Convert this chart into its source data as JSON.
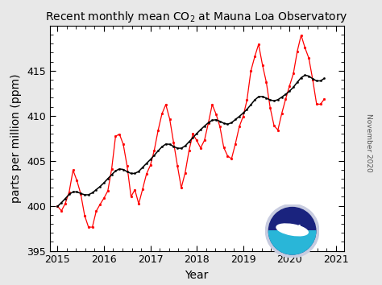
{
  "title": "Recent monthly mean CO\\u2082 at Mauna Loa Observatory",
  "xlabel": "Year",
  "ylabel": "parts per million (ppm)",
  "xlim": [
    2014.83,
    2021.17
  ],
  "ylim": [
    395,
    420
  ],
  "yticks": [
    395,
    400,
    405,
    410,
    415
  ],
  "xticks": [
    2015,
    2016,
    2017,
    2018,
    2019,
    2020,
    2021
  ],
  "bg_color": "#e8e8e8",
  "plot_bg_color": "#ffffff",
  "watermark_text": "November 2020",
  "monthly_raw": [
    399.96,
    399.43,
    400.26,
    401.52,
    403.96,
    402.8,
    401.32,
    398.93,
    397.63,
    397.63,
    399.4,
    400.16,
    400.85,
    401.65,
    404.09,
    407.71,
    407.96,
    406.82,
    404.39,
    401.01,
    401.78,
    400.21,
    401.85,
    403.53,
    404.48,
    406.13,
    408.35,
    410.21,
    411.24,
    409.65,
    407.07,
    404.47,
    401.99,
    403.65,
    406.13,
    407.97,
    407.25,
    406.42,
    407.27,
    409.17,
    411.24,
    410.18,
    408.77,
    406.45,
    405.53,
    405.22,
    406.88,
    408.78,
    409.92,
    411.75,
    414.96,
    416.55,
    417.93,
    415.64,
    413.72,
    410.87,
    408.89,
    408.41,
    410.27,
    411.85,
    413.31,
    414.68,
    417.14,
    418.95,
    417.54,
    416.38,
    414.0,
    411.29,
    411.28,
    411.84
  ],
  "monthly_trend": [
    399.93,
    400.35,
    400.8,
    401.27,
    401.54,
    401.54,
    401.37,
    401.22,
    401.22,
    401.44,
    401.79,
    402.14,
    402.55,
    403.01,
    403.45,
    403.87,
    404.09,
    404.03,
    403.79,
    403.59,
    403.59,
    403.82,
    404.26,
    404.7,
    405.13,
    405.6,
    406.09,
    406.55,
    406.85,
    406.83,
    406.59,
    406.39,
    406.39,
    406.64,
    407.1,
    407.57,
    408.02,
    408.45,
    408.85,
    409.22,
    409.5,
    409.55,
    409.38,
    409.16,
    409.06,
    409.22,
    409.58,
    409.92,
    410.29,
    410.71,
    411.22,
    411.75,
    412.11,
    412.13,
    411.95,
    411.75,
    411.65,
    411.78,
    412.07,
    412.38,
    412.73,
    413.17,
    413.71,
    414.22,
    414.5,
    414.4,
    414.1,
    413.87,
    413.87,
    414.14
  ],
  "start_year": 2015.0,
  "months_per_year": 12,
  "red_color": "#ff0000",
  "black_color": "#000000",
  "tick_label_size": 9,
  "axis_label_size": 10,
  "title_size": 10,
  "logo_outer_color": "#c8cce0",
  "logo_navy_color": "#1a237e",
  "logo_teal_color": "#29b6d8",
  "logo_text_color": "#ffffff"
}
